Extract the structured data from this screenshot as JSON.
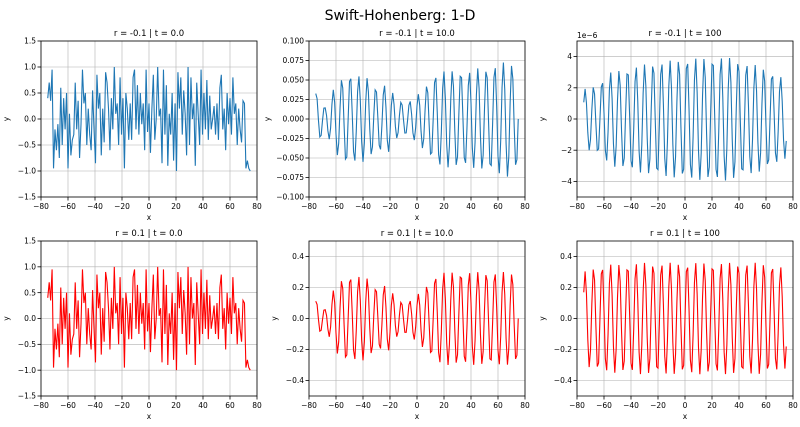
{
  "figure": {
    "suptitle": "Swift-Hohenberg: 1-D"
  },
  "colors": {
    "blue": "#1f77b4",
    "red": "#ff0000",
    "grid": "#b0b0b0",
    "axis": "#000000"
  },
  "chart_data": [
    {
      "type": "line",
      "title": "r = -0.1 | t = 0.0",
      "xlabel": "x",
      "ylabel": "y",
      "xlim": [
        -80,
        80
      ],
      "ylim": [
        -1.5,
        1.5
      ],
      "xticks": [
        -80,
        -60,
        -40,
        -20,
        0,
        20,
        40,
        60,
        80
      ],
      "yticks": [
        -1.5,
        -1.0,
        -0.5,
        0.0,
        0.5,
        1.0,
        1.5
      ],
      "ytick_labels": [
        "−1.5",
        "−1.0",
        "−0.5",
        "0.0",
        "0.5",
        "1.0",
        "1.5"
      ],
      "grid": true,
      "color": "#1f77b4",
      "series": [
        {
          "x_range": [
            -75,
            75
          ],
          "signal": "noise",
          "values": [
            0.4,
            0.7,
            0.35,
            0.95,
            -0.95,
            -0.2,
            -0.6,
            -0.1,
            -0.75,
            0.6,
            -0.5,
            0.4,
            -0.2,
            0.5,
            -0.95,
            0.1,
            -0.7,
            -0.4,
            -0.3,
            0.7,
            -0.2,
            0.35,
            -0.75,
            -0.1,
            0.95,
            0.3,
            0.5,
            -0.5,
            0.2,
            -0.3,
            -0.6,
            0.55,
            -0.2,
            -0.85,
            0.85,
            0.2,
            0.5,
            -0.7,
            0.2,
            -0.45,
            0.9,
            0.7,
            0.2,
            -0.6,
            0.4,
            -0.2,
            1.0,
            0.1,
            0.3,
            -0.5,
            0.8,
            -0.3,
            0.4,
            -0.95,
            0.5,
            0.2,
            -0.4,
            0.3,
            -0.4,
            0.8,
            0.95,
            -0.2,
            0.65,
            -0.3,
            0.5,
            -0.1,
            0.3,
            -0.6,
            0.95,
            -0.25,
            0.3,
            -0.65,
            0.2,
            0.85,
            -0.4,
            0.0,
            1.0,
            0.05,
            0.2,
            -0.85,
            0.95,
            -0.3,
            0.65,
            -0.9,
            0.1,
            -0.3,
            0.5,
            -0.8,
            0.3,
            -1.0,
            0.9,
            0.2,
            0.8,
            -0.3,
            0.55,
            0.1,
            -0.7,
            1.0,
            -0.5,
            0.8,
            0.0,
            0.3,
            -0.9,
            0.7,
            0.1,
            -0.5,
            0.95,
            -0.3,
            0.5,
            -0.2,
            0.75,
            -0.4,
            0.45,
            -0.2,
            0.0,
            0.25,
            -0.3,
            0.3,
            -0.4,
            0.6,
            0.85,
            -0.2,
            0.2,
            -0.6,
            0.5,
            -0.1,
            0.4,
            -0.3,
            0.8,
            0.1,
            0.3,
            -0.5,
            0.2,
            -0.2,
            -0.45,
            0.35,
            0.3,
            -0.95,
            -0.8,
            -0.95,
            -1.0
          ]
        }
      ]
    },
    {
      "type": "line",
      "title": "r = -0.1 | t = 10.0",
      "xlabel": "x",
      "ylabel": "y",
      "xlim": [
        -80,
        80
      ],
      "ylim": [
        -0.1,
        0.1
      ],
      "xticks": [
        -80,
        -60,
        -40,
        -20,
        0,
        20,
        40,
        60,
        80
      ],
      "yticks": [
        -0.1,
        -0.075,
        -0.05,
        -0.025,
        0.0,
        0.025,
        0.05,
        0.075,
        0.1
      ],
      "ytick_labels": [
        "−0.100",
        "−0.075",
        "−0.050",
        "−0.025",
        "0.000",
        "0.025",
        "0.050",
        "0.075",
        "0.100"
      ],
      "grid": true,
      "color": "#1f77b4",
      "series": [
        {
          "x_range": [
            -75,
            75
          ],
          "signal": "wave",
          "envelope": [
            [
              -75,
              0.035
            ],
            [
              -68,
              0.015
            ],
            [
              -60,
              0.045
            ],
            [
              -52,
              0.058
            ],
            [
              -45,
              0.055
            ],
            [
              -38,
              0.055
            ],
            [
              -30,
              0.04
            ],
            [
              -22,
              0.045
            ],
            [
              -15,
              0.025
            ],
            [
              -8,
              0.02
            ],
            [
              0,
              0.03
            ],
            [
              8,
              0.045
            ],
            [
              15,
              0.06
            ],
            [
              22,
              0.062
            ],
            [
              30,
              0.062
            ],
            [
              38,
              0.06
            ],
            [
              45,
              0.065
            ],
            [
              52,
              0.065
            ],
            [
              60,
              0.07
            ],
            [
              68,
              0.075
            ],
            [
              75,
              0.06
            ]
          ],
          "period": 6.3,
          "phase": 0.6
        }
      ]
    },
    {
      "type": "line",
      "title": "r = -0.1 | t = 100",
      "xlabel": "x",
      "ylabel": "y",
      "offset_text": "1e−6",
      "xlim": [
        -80,
        80
      ],
      "ylim": [
        -5,
        5
      ],
      "xticks": [
        -80,
        -60,
        -40,
        -20,
        0,
        20,
        40,
        60,
        80
      ],
      "yticks": [
        -4,
        -2,
        0,
        2,
        4
      ],
      "ytick_labels": [
        "−4",
        "−2",
        "0",
        "2",
        "4"
      ],
      "grid": true,
      "color": "#1f77b4",
      "series": [
        {
          "x_range": [
            -75,
            75
          ],
          "signal": "wave",
          "envelope": [
            [
              -75,
              1.9
            ],
            [
              -65,
              2.2
            ],
            [
              -55,
              3.0
            ],
            [
              -45,
              3.2
            ],
            [
              -35,
              3.4
            ],
            [
              -25,
              3.6
            ],
            [
              -15,
              3.7
            ],
            [
              -5,
              3.8
            ],
            [
              5,
              3.9
            ],
            [
              15,
              3.9
            ],
            [
              25,
              4.0
            ],
            [
              35,
              3.9
            ],
            [
              45,
              3.6
            ],
            [
              55,
              3.4
            ],
            [
              65,
              3.0
            ],
            [
              75,
              2.5
            ]
          ],
          "period": 6.3,
          "phase": 0.0
        }
      ]
    },
    {
      "type": "line",
      "title": "r = 0.1 | t = 0.0",
      "xlabel": "x",
      "ylabel": "y",
      "xlim": [
        -80,
        80
      ],
      "ylim": [
        -1.5,
        1.5
      ],
      "xticks": [
        -80,
        -60,
        -40,
        -20,
        0,
        20,
        40,
        60,
        80
      ],
      "yticks": [
        -1.5,
        -1.0,
        -0.5,
        0.0,
        0.5,
        1.0,
        1.5
      ],
      "ytick_labels": [
        "−1.5",
        "−1.0",
        "−0.5",
        "0.0",
        "0.5",
        "1.0",
        "1.5"
      ],
      "grid": true,
      "color": "#ff0000",
      "series": [
        {
          "x_range": [
            -75,
            75
          ],
          "signal": "same_as_panel_1"
        }
      ]
    },
    {
      "type": "line",
      "title": "r = 0.1 | t = 10.0",
      "xlabel": "x",
      "ylabel": "y",
      "xlim": [
        -80,
        80
      ],
      "ylim": [
        -0.5,
        0.5
      ],
      "xticks": [
        -80,
        -60,
        -40,
        -20,
        0,
        20,
        40,
        60,
        80
      ],
      "yticks": [
        -0.4,
        -0.2,
        0.0,
        0.2,
        0.4
      ],
      "ytick_labels": [
        "−0.4",
        "−0.2",
        "0.0",
        "0.2",
        "0.4"
      ],
      "grid": true,
      "color": "#ff0000",
      "series": [
        {
          "x_range": [
            -75,
            75
          ],
          "signal": "wave",
          "envelope": [
            [
              -75,
              0.12
            ],
            [
              -68,
              0.06
            ],
            [
              -60,
              0.22
            ],
            [
              -52,
              0.28
            ],
            [
              -45,
              0.27
            ],
            [
              -38,
              0.27
            ],
            [
              -30,
              0.2
            ],
            [
              -22,
              0.22
            ],
            [
              -15,
              0.12
            ],
            [
              -8,
              0.1
            ],
            [
              0,
              0.15
            ],
            [
              8,
              0.22
            ],
            [
              15,
              0.29
            ],
            [
              22,
              0.3
            ],
            [
              30,
              0.3
            ],
            [
              38,
              0.3
            ],
            [
              45,
              0.3
            ],
            [
              52,
              0.3
            ],
            [
              60,
              0.3
            ],
            [
              68,
              0.3
            ],
            [
              75,
              0.28
            ]
          ],
          "period": 6.3,
          "phase": 0.6
        }
      ]
    },
    {
      "type": "line",
      "title": "r = 0.1 | t = 100",
      "xlabel": "x",
      "ylabel": "y",
      "xlim": [
        -80,
        80
      ],
      "ylim": [
        -0.5,
        0.5
      ],
      "xticks": [
        -80,
        -60,
        -40,
        -20,
        0,
        20,
        40,
        60,
        80
      ],
      "yticks": [
        -0.4,
        -0.2,
        0.0,
        0.2,
        0.4
      ],
      "ytick_labels": [
        "−0.4",
        "−0.2",
        "0.0",
        "0.2",
        "0.4"
      ],
      "grid": true,
      "color": "#ff0000",
      "series": [
        {
          "x_range": [
            -75,
            75
          ],
          "signal": "wave",
          "envelope": [
            [
              -75,
              0.3
            ],
            [
              -65,
              0.34
            ],
            [
              -55,
              0.35
            ],
            [
              -45,
              0.35
            ],
            [
              -35,
              0.36
            ],
            [
              -25,
              0.36
            ],
            [
              -15,
              0.36
            ],
            [
              -5,
              0.36
            ],
            [
              5,
              0.36
            ],
            [
              15,
              0.36
            ],
            [
              25,
              0.36
            ],
            [
              35,
              0.36
            ],
            [
              45,
              0.36
            ],
            [
              55,
              0.36
            ],
            [
              65,
              0.35
            ],
            [
              75,
              0.32
            ]
          ],
          "period": 6.3,
          "phase": 0.0
        }
      ]
    }
  ]
}
